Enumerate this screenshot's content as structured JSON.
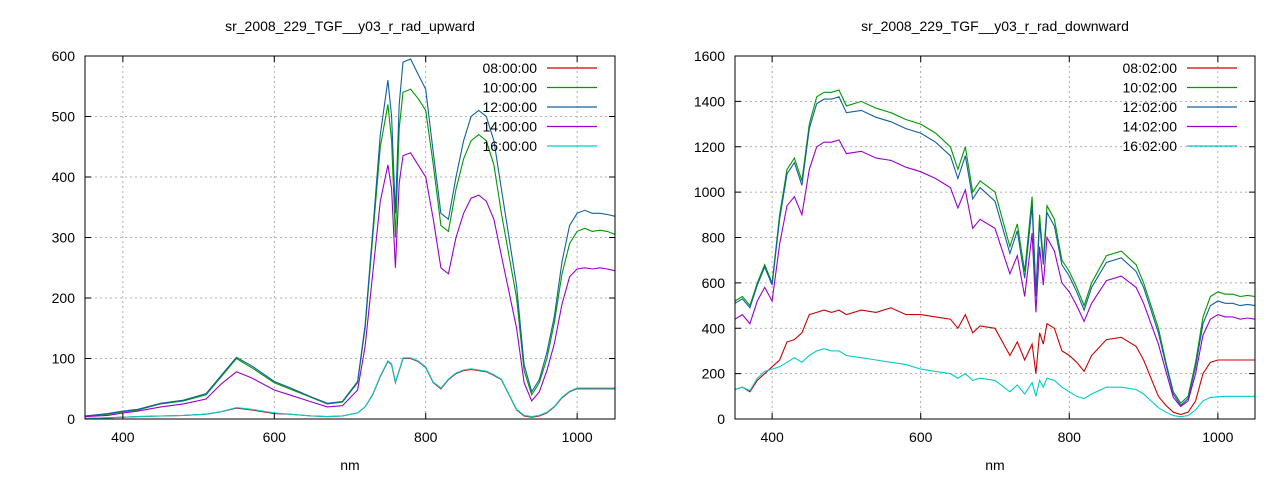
{
  "chart_data": [
    {
      "type": "line",
      "title": "sr_2008_229_TGF__y03_r_rad_upward",
      "xlabel": "nm",
      "ylabel": "",
      "xlim": [
        350,
        1050
      ],
      "ylim": [
        0,
        600
      ],
      "xticks": [
        400,
        600,
        800,
        1000
      ],
      "yticks": [
        0,
        100,
        200,
        300,
        400,
        500,
        600
      ],
      "grid": true,
      "legend_position": "top-right",
      "x": [
        350,
        380,
        400,
        420,
        450,
        480,
        510,
        530,
        550,
        570,
        600,
        620,
        650,
        670,
        690,
        710,
        720,
        730,
        740,
        750,
        755,
        760,
        765,
        770,
        780,
        790,
        800,
        810,
        820,
        830,
        840,
        850,
        860,
        870,
        880,
        890,
        900,
        910,
        920,
        930,
        940,
        950,
        960,
        970,
        980,
        990,
        1000,
        1010,
        1020,
        1030,
        1040,
        1050
      ],
      "series": [
        {
          "name": "08:00:00",
          "color": "#cc0000",
          "values": [
            1,
            2,
            3,
            4,
            5,
            6,
            8,
            12,
            18,
            15,
            9,
            8,
            5,
            4,
            5,
            10,
            20,
            40,
            70,
            95,
            90,
            60,
            80,
            100,
            100,
            95,
            85,
            60,
            50,
            65,
            75,
            80,
            82,
            80,
            78,
            72,
            65,
            40,
            15,
            5,
            3,
            5,
            10,
            20,
            35,
            45,
            50,
            50,
            50,
            50,
            50,
            50
          ]
        },
        {
          "name": "10:00:00",
          "color": "#009900",
          "values": [
            5,
            8,
            12,
            15,
            25,
            30,
            40,
            70,
            100,
            85,
            60,
            50,
            35,
            25,
            28,
            60,
            150,
            300,
            450,
            520,
            460,
            300,
            480,
            540,
            545,
            530,
            510,
            420,
            320,
            310,
            380,
            430,
            460,
            470,
            460,
            420,
            340,
            270,
            200,
            80,
            40,
            60,
            100,
            160,
            240,
            290,
            310,
            315,
            310,
            312,
            310,
            305
          ]
        },
        {
          "name": "12:00:00",
          "color": "#1060a0",
          "values": [
            5,
            9,
            13,
            16,
            26,
            31,
            42,
            72,
            102,
            88,
            62,
            52,
            36,
            26,
            29,
            62,
            155,
            310,
            470,
            560,
            500,
            340,
            520,
            590,
            595,
            570,
            545,
            440,
            340,
            330,
            400,
            460,
            500,
            510,
            500,
            460,
            380,
            300,
            220,
            90,
            45,
            65,
            110,
            170,
            260,
            320,
            340,
            345,
            340,
            340,
            338,
            335
          ]
        },
        {
          "name": "14:00:00",
          "color": "#9900cc",
          "values": [
            4,
            6,
            10,
            13,
            20,
            25,
            33,
            58,
            78,
            68,
            48,
            40,
            28,
            20,
            22,
            48,
            120,
            240,
            360,
            420,
            380,
            250,
            390,
            435,
            440,
            420,
            400,
            330,
            250,
            240,
            300,
            340,
            365,
            370,
            360,
            330,
            270,
            210,
            150,
            60,
            30,
            45,
            80,
            125,
            190,
            235,
            248,
            250,
            248,
            250,
            248,
            245
          ]
        },
        {
          "name": "16:00:00",
          "color": "#00cccc",
          "values": [
            1,
            2,
            3,
            4,
            5,
            6,
            8,
            12,
            19,
            16,
            10,
            8,
            5,
            4,
            5,
            10,
            20,
            41,
            71,
            96,
            91,
            61,
            81,
            101,
            101,
            96,
            86,
            61,
            51,
            66,
            76,
            81,
            83,
            81,
            79,
            73,
            66,
            41,
            16,
            6,
            4,
            6,
            11,
            21,
            36,
            46,
            51,
            51,
            51,
            51,
            51,
            51
          ]
        }
      ]
    },
    {
      "type": "line",
      "title": "sr_2008_229_TGF__y03_r_rad_downward",
      "xlabel": "nm",
      "ylabel": "",
      "xlim": [
        350,
        1050
      ],
      "ylim": [
        0,
        1600
      ],
      "xticks": [
        400,
        600,
        800,
        1000
      ],
      "yticks": [
        0,
        200,
        400,
        600,
        800,
        1000,
        1200,
        1400,
        1600
      ],
      "grid": true,
      "legend_position": "top-right",
      "x": [
        350,
        360,
        370,
        380,
        390,
        400,
        410,
        420,
        430,
        440,
        450,
        460,
        470,
        480,
        490,
        500,
        520,
        540,
        560,
        580,
        600,
        620,
        640,
        650,
        660,
        670,
        680,
        700,
        720,
        730,
        740,
        750,
        755,
        760,
        765,
        770,
        780,
        790,
        800,
        810,
        820,
        830,
        850,
        870,
        890,
        900,
        910,
        920,
        930,
        940,
        950,
        960,
        970,
        980,
        990,
        1000,
        1010,
        1020,
        1030,
        1040,
        1050
      ],
      "series": [
        {
          "name": "08:02:00",
          "color": "#cc0000",
          "values": [
            130,
            140,
            120,
            170,
            200,
            230,
            260,
            340,
            350,
            380,
            460,
            470,
            480,
            470,
            480,
            460,
            480,
            470,
            490,
            460,
            460,
            450,
            440,
            400,
            460,
            380,
            410,
            400,
            280,
            340,
            260,
            330,
            200,
            380,
            330,
            420,
            400,
            300,
            280,
            250,
            210,
            280,
            350,
            360,
            320,
            260,
            180,
            100,
            60,
            30,
            20,
            30,
            80,
            200,
            250,
            260,
            260,
            260,
            260,
            260,
            260
          ]
        },
        {
          "name": "10:02:00",
          "color": "#009900",
          "values": [
            520,
            540,
            500,
            600,
            680,
            600,
            900,
            1100,
            1150,
            1050,
            1300,
            1420,
            1440,
            1440,
            1450,
            1380,
            1400,
            1370,
            1350,
            1320,
            1300,
            1260,
            1200,
            1100,
            1200,
            1000,
            1050,
            1000,
            760,
            860,
            650,
            980,
            560,
            900,
            700,
            940,
            880,
            700,
            650,
            580,
            500,
            600,
            720,
            740,
            680,
            600,
            500,
            400,
            250,
            120,
            70,
            100,
            250,
            450,
            540,
            560,
            550,
            550,
            540,
            545,
            540
          ]
        },
        {
          "name": "12:02:00",
          "color": "#1060a0",
          "values": [
            510,
            530,
            490,
            590,
            670,
            590,
            880,
            1080,
            1130,
            1030,
            1280,
            1390,
            1410,
            1410,
            1420,
            1350,
            1360,
            1330,
            1310,
            1280,
            1260,
            1220,
            1160,
            1060,
            1160,
            970,
            1020,
            960,
            730,
            830,
            620,
            940,
            540,
            870,
            680,
            910,
            850,
            680,
            630,
            560,
            480,
            580,
            690,
            710,
            650,
            580,
            480,
            380,
            240,
            110,
            60,
            90,
            230,
            420,
            500,
            520,
            510,
            510,
            500,
            505,
            500
          ]
        },
        {
          "name": "14:02:00",
          "color": "#9900cc",
          "values": [
            440,
            460,
            420,
            520,
            580,
            520,
            770,
            940,
            980,
            900,
            1100,
            1200,
            1220,
            1220,
            1230,
            1170,
            1180,
            1150,
            1140,
            1110,
            1090,
            1060,
            1020,
            930,
            1010,
            840,
            880,
            840,
            640,
            720,
            540,
            820,
            470,
            760,
            590,
            800,
            740,
            600,
            560,
            500,
            430,
            510,
            610,
            630,
            580,
            510,
            420,
            330,
            210,
            95,
            55,
            80,
            200,
            370,
            440,
            460,
            450,
            450,
            440,
            445,
            440
          ]
        },
        {
          "name": "16:02:00",
          "color": "#00cccc",
          "values": [
            130,
            140,
            125,
            180,
            210,
            220,
            230,
            250,
            270,
            250,
            280,
            300,
            310,
            300,
            300,
            280,
            270,
            260,
            250,
            240,
            220,
            210,
            200,
            180,
            200,
            170,
            180,
            170,
            120,
            150,
            110,
            160,
            100,
            170,
            140,
            180,
            170,
            140,
            120,
            100,
            90,
            110,
            140,
            140,
            130,
            110,
            80,
            50,
            30,
            15,
            10,
            15,
            40,
            80,
            95,
            98,
            100,
            100,
            100,
            100,
            100
          ]
        }
      ]
    }
  ]
}
